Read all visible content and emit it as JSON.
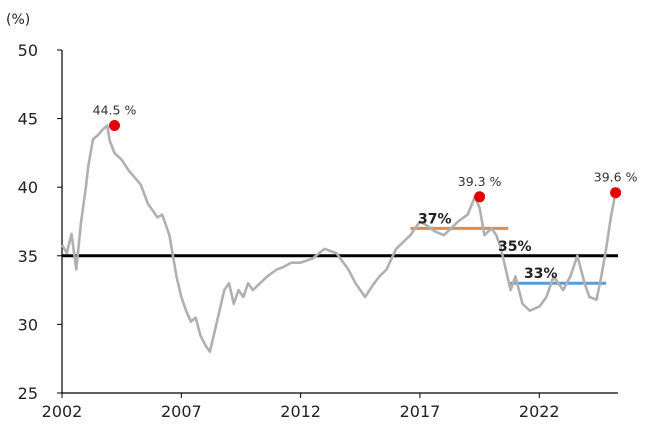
{
  "chart_data": {
    "type": "line",
    "title": "",
    "xlabel": "",
    "ylabel": "(%)",
    "xlim": [
      2002,
      2025.3
    ],
    "ylim": [
      25,
      50
    ],
    "x_ticks": [
      2002,
      2007,
      2012,
      2017,
      2022
    ],
    "x_tick_labels": [
      "2002",
      "2007",
      "2012",
      "2017",
      "2022"
    ],
    "y_ticks": [
      25,
      30,
      35,
      40,
      45,
      50
    ],
    "y_tick_labels": [
      "25",
      "30",
      "35",
      "40",
      "45",
      "50"
    ],
    "grid": false,
    "legend": "none",
    "series": [
      {
        "color": "#b0b0b0",
        "x": [
          2002.0,
          2002.2,
          2002.4,
          2002.6,
          2002.8,
          2003.0,
          2003.1,
          2003.3,
          2003.5,
          2003.7,
          2003.9,
          2004.0,
          2004.2,
          2004.5,
          2004.8,
          2005.0,
          2005.3,
          2005.6,
          2006.0,
          2006.2,
          2006.5,
          2006.8,
          2007.0,
          2007.2,
          2007.4,
          2007.6,
          2007.8,
          2008.0,
          2008.2,
          2008.4,
          2008.6,
          2008.8,
          2009.0,
          2009.2,
          2009.4,
          2009.6,
          2009.8,
          2010.0,
          2010.3,
          2010.6,
          2011.0,
          2011.3,
          2011.6,
          2012.0,
          2012.5,
          2013.0,
          2013.5,
          2014.0,
          2014.3,
          2014.7,
          2015.0,
          2015.3,
          2015.6,
          2016.0,
          2016.3,
          2016.6,
          2017.0,
          2017.3,
          2017.6,
          2018.0,
          2018.3,
          2018.6,
          2019.0,
          2019.3,
          2019.5,
          2019.7,
          2020.0,
          2020.2,
          2020.4,
          2020.6,
          2020.8,
          2021.0,
          2021.3,
          2021.6,
          2022.0,
          2022.3,
          2022.6,
          2023.0,
          2023.3,
          2023.6,
          2023.9,
          2024.1,
          2024.4,
          2024.6,
          2024.8,
          2025.0,
          2025.2
        ],
        "values": [
          35.8,
          35.2,
          36.6,
          34.0,
          37.5,
          40.0,
          41.5,
          43.5,
          43.8,
          44.2,
          44.5,
          43.4,
          42.5,
          42.0,
          41.2,
          40.8,
          40.2,
          38.8,
          37.8,
          38.0,
          36.5,
          33.5,
          32.0,
          31.0,
          30.2,
          30.5,
          29.2,
          28.5,
          28.0,
          29.5,
          31.0,
          32.5,
          33.0,
          31.5,
          32.5,
          32.0,
          33.0,
          32.5,
          33.0,
          33.5,
          34.0,
          34.2,
          34.5,
          34.5,
          34.8,
          35.5,
          35.2,
          34.0,
          33.0,
          32.0,
          32.8,
          33.5,
          34.0,
          35.5,
          36.0,
          36.5,
          37.5,
          37.2,
          36.8,
          36.5,
          37.0,
          37.5,
          38.0,
          39.3,
          38.5,
          36.5,
          37.0,
          36.5,
          35.5,
          34.0,
          32.5,
          33.5,
          31.5,
          31.0,
          31.3,
          32.0,
          33.5,
          32.5,
          33.5,
          35.0,
          33.0,
          32.0,
          31.8,
          33.5,
          35.5,
          37.8,
          39.6
        ]
      }
    ],
    "reference_lines": [
      {
        "y": 35,
        "label": "35%",
        "color": "#000000"
      },
      {
        "y": 37,
        "label": "37%",
        "color": "#e08c4a",
        "x_start": 2016.6,
        "x_end": 2020.7
      },
      {
        "y": 33,
        "label": "33%",
        "color": "#5b9bd5",
        "x_start": 2020.7,
        "x_end": 2024.8
      }
    ],
    "annotations": [
      {
        "x": 2004.2,
        "y": 44.5,
        "label": "44.5 %",
        "color": "#e00000"
      },
      {
        "x": 2019.5,
        "y": 39.3,
        "label": "39.3 %",
        "color": "#e00000"
      },
      {
        "x": 2025.2,
        "y": 39.6,
        "label": "39.6 %",
        "color": "#e00000"
      }
    ]
  }
}
